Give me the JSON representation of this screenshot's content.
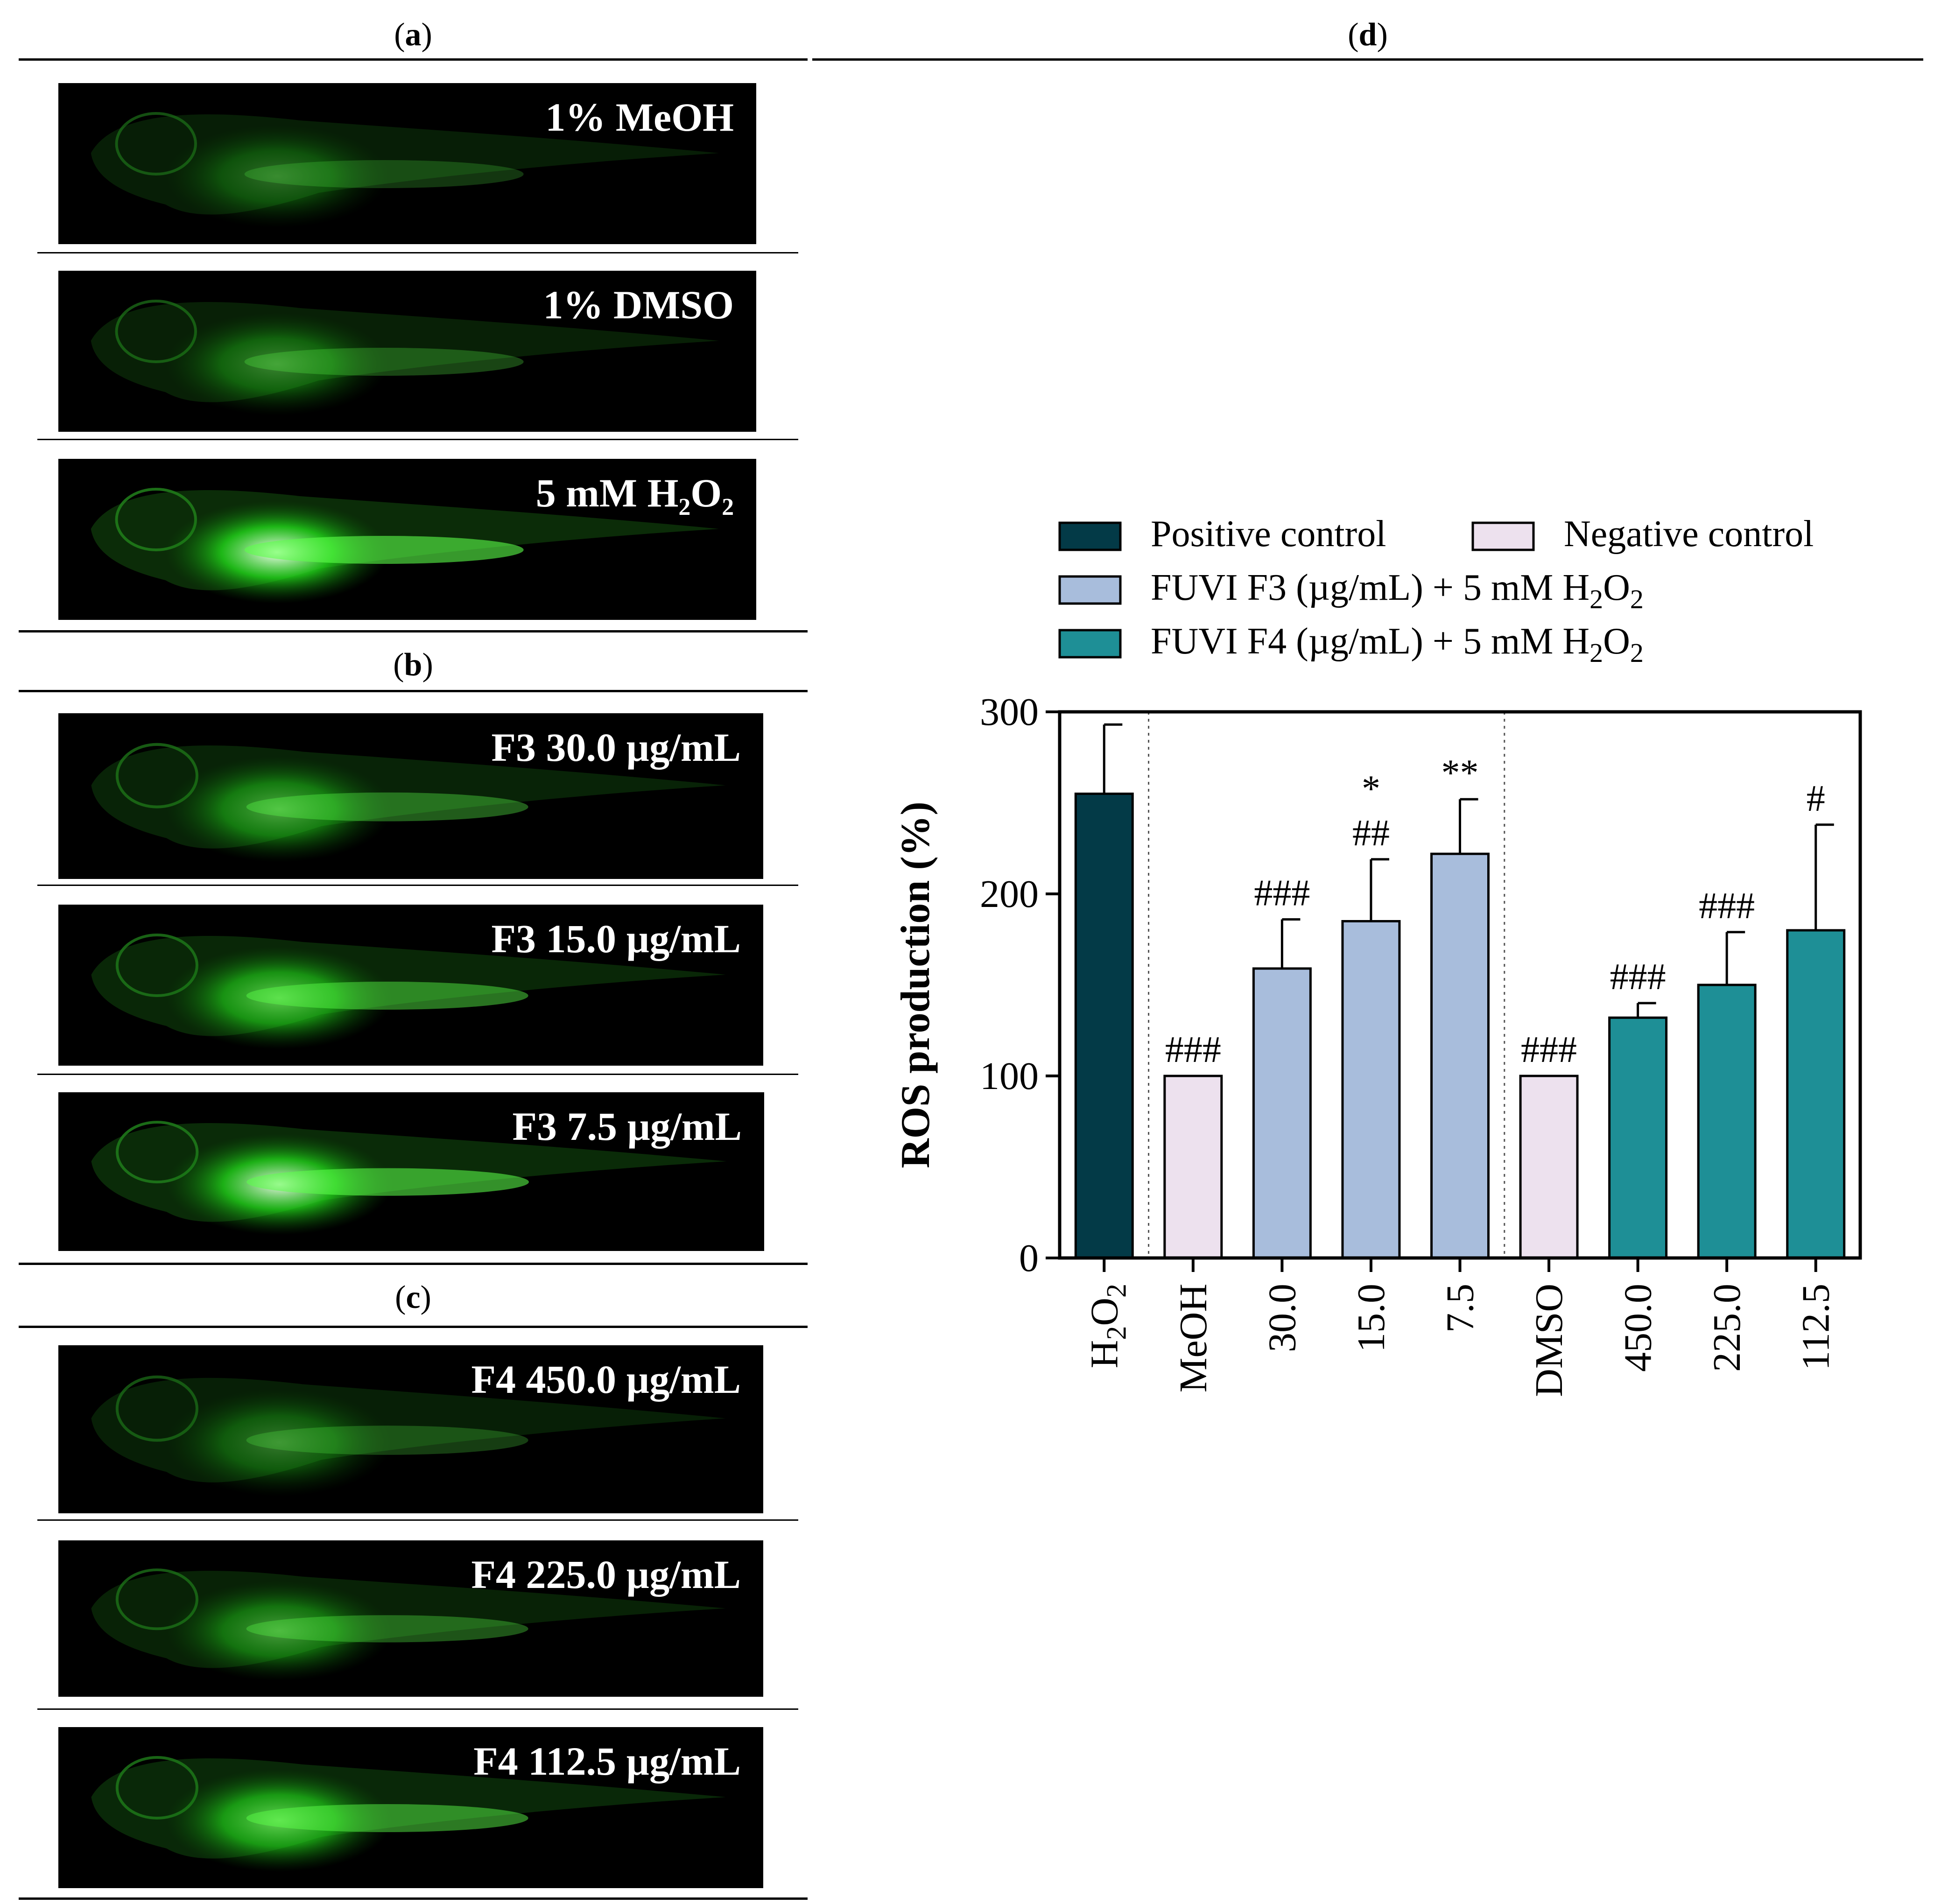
{
  "panels": {
    "a": {
      "label_open": "(",
      "letter": "a",
      "label_close": ")"
    },
    "b": {
      "label_open": "(",
      "letter": "b",
      "label_close": ")"
    },
    "c": {
      "label_open": "(",
      "letter": "c",
      "label_close": ")"
    },
    "d": {
      "label_open": "(",
      "letter": "d",
      "label_close": ")"
    }
  },
  "fish_images": [
    {
      "label": "1% MeOH",
      "intensity": 0.35
    },
    {
      "label": "1% DMSO",
      "intensity": 0.45
    },
    {
      "label_main": "5 mM H",
      "sub1": "2",
      "mid": "O",
      "sub2": "2",
      "intensity": 1.0
    },
    {
      "label": "F3 30.0 µg/mL",
      "intensity": 0.6
    },
    {
      "label": "F3 15.0 µg/mL",
      "intensity": 0.75
    },
    {
      "label": "F3 7.5 µg/mL",
      "intensity": 0.95
    },
    {
      "label": "F4 450.0 µg/mL",
      "intensity": 0.4
    },
    {
      "label": "F4 225.0 µg/mL",
      "intensity": 0.55
    },
    {
      "label": "F4 112.5 µg/mL",
      "intensity": 0.8
    }
  ],
  "colors": {
    "positive": "#033a47",
    "negative": "#ede1ee",
    "f3": "#a8bddc",
    "f4": "#1e8f96"
  },
  "chart_data": {
    "type": "bar",
    "ylabel": "ROS production (%)",
    "ylim": [
      0,
      300
    ],
    "yticks": [
      0,
      100,
      200,
      300
    ],
    "legend": [
      {
        "name": "Positive control",
        "color_key": "positive"
      },
      {
        "name": "Negative control",
        "color_key": "negative"
      },
      {
        "name": "FUVI F3 (µg/mL) + 5 mM H",
        "sub1": "2",
        "mid": "O",
        "sub2": "2",
        "color_key": "f3"
      },
      {
        "name": "FUVI F4 (µg/mL) + 5 mM H",
        "sub1": "2",
        "mid": "O",
        "sub2": "2",
        "color_key": "f4"
      }
    ],
    "bars": [
      {
        "category": "H2O2",
        "cat_main": "H",
        "cat_sub1": "2",
        "cat_mid": "O",
        "cat_sub2": "2",
        "value": 255,
        "error": 38,
        "group": "positive",
        "annotations": []
      },
      {
        "category": "MeOH",
        "value": 100,
        "error": 0,
        "group": "negative",
        "annotations": [
          "###"
        ]
      },
      {
        "category": "30.0",
        "value": 159,
        "error": 27,
        "group": "f3",
        "annotations": [
          "###"
        ]
      },
      {
        "category": "15.0",
        "value": 185,
        "error": 34,
        "group": "f3",
        "annotations": [
          "##",
          "*"
        ]
      },
      {
        "category": "7.5",
        "value": 222,
        "error": 30,
        "group": "f3",
        "annotations": [
          "**"
        ]
      },
      {
        "category": "DMSO",
        "value": 100,
        "error": 0,
        "group": "negative",
        "annotations": [
          "###"
        ]
      },
      {
        "category": "450.0",
        "value": 132,
        "error": 8,
        "group": "f4",
        "annotations": [
          "###"
        ]
      },
      {
        "category": "225.0",
        "value": 150,
        "error": 29,
        "group": "f4",
        "annotations": [
          "###"
        ]
      },
      {
        "category": "112.5",
        "value": 180,
        "error": 58,
        "group": "f4",
        "annotations": [
          "#"
        ]
      }
    ],
    "separators_after": [
      0,
      4
    ]
  }
}
